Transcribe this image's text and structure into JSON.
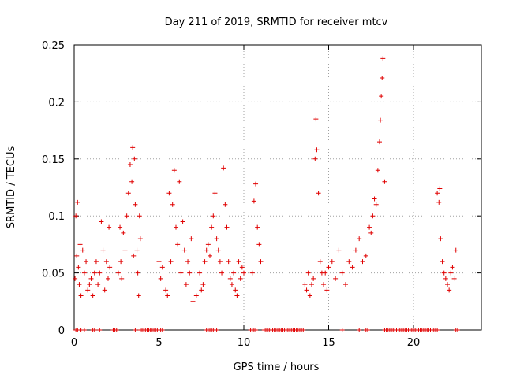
{
  "chart_data": {
    "type": "scatter",
    "title": "Day 211 of 2019, SRMTID for receiver mtcv",
    "xlabel": "GPS time / hours",
    "ylabel": "SRMTID / TECUs",
    "xlim": [
      0,
      24
    ],
    "ylim": [
      0,
      0.25
    ],
    "xticks": [
      0,
      5,
      10,
      15,
      20
    ],
    "xtick_labels": [
      "0",
      "5",
      "10",
      "15",
      "20"
    ],
    "yticks": [
      0,
      0.05,
      0.1,
      0.15,
      0.2,
      0.25
    ],
    "ytick_labels": [
      "0",
      "0.05",
      "0.1",
      "0.15",
      "0.2",
      "0.25"
    ],
    "grid": true,
    "marker": "+",
    "color": "#e00000",
    "series": [
      {
        "name": "SRMTID",
        "x": [
          0.05,
          0.1,
          0.15,
          0.2,
          0.25,
          0.3,
          0.35,
          0.4,
          0.5,
          0.6,
          0.7,
          0.8,
          0.9,
          1.0,
          1.1,
          1.2,
          1.3,
          1.4,
          1.5,
          1.6,
          1.7,
          1.8,
          1.9,
          2.0,
          2.05,
          2.1,
          2.6,
          2.7,
          2.75,
          2.8,
          2.9,
          3.0,
          3.1,
          3.2,
          3.3,
          3.4,
          3.45,
          3.5,
          3.55,
          3.6,
          3.7,
          3.75,
          3.8,
          3.85,
          3.9,
          5.0,
          5.1,
          5.2,
          5.4,
          5.5,
          5.6,
          5.7,
          5.8,
          5.9,
          6.0,
          6.1,
          6.2,
          6.3,
          6.4,
          6.5,
          6.6,
          6.7,
          6.8,
          6.9,
          7.0,
          7.2,
          7.4,
          7.5,
          7.6,
          7.7,
          7.8,
          7.9,
          8.0,
          8.1,
          8.2,
          8.3,
          8.4,
          8.5,
          8.6,
          8.7,
          8.8,
          8.9,
          9.0,
          9.1,
          9.2,
          9.3,
          9.4,
          9.5,
          9.6,
          9.7,
          9.8,
          9.9,
          10.0,
          10.5,
          10.6,
          10.7,
          10.8,
          10.9,
          11.0,
          13.6,
          13.7,
          13.8,
          13.9,
          14.0,
          14.1,
          14.2,
          14.25,
          14.3,
          14.4,
          14.5,
          14.6,
          14.7,
          14.8,
          14.9,
          15.0,
          15.2,
          15.4,
          15.6,
          15.8,
          16.0,
          16.2,
          16.4,
          16.6,
          16.8,
          17.0,
          17.2,
          17.4,
          17.5,
          17.6,
          17.7,
          17.8,
          17.9,
          18.0,
          18.05,
          18.1,
          18.15,
          18.2,
          18.3,
          21.4,
          21.5,
          21.55,
          21.6,
          21.7,
          21.8,
          21.9,
          22.0,
          22.1,
          22.2,
          22.3,
          22.4,
          22.5
        ],
        "y": [
          0.045,
          0.1,
          0.065,
          0.112,
          0.055,
          0.04,
          0.075,
          0.03,
          0.07,
          0.05,
          0.06,
          0.035,
          0.04,
          0.045,
          0.03,
          0.05,
          0.06,
          0.04,
          0.05,
          0.095,
          0.07,
          0.035,
          0.06,
          0.045,
          0.09,
          0.055,
          0.05,
          0.09,
          0.06,
          0.045,
          0.085,
          0.07,
          0.1,
          0.12,
          0.145,
          0.13,
          0.16,
          0.065,
          0.15,
          0.11,
          0.07,
          0.05,
          0.03,
          0.1,
          0.08,
          0.06,
          0.045,
          0.055,
          0.035,
          0.03,
          0.12,
          0.06,
          0.11,
          0.14,
          0.09,
          0.075,
          0.13,
          0.05,
          0.095,
          0.07,
          0.04,
          0.06,
          0.05,
          0.08,
          0.025,
          0.03,
          0.05,
          0.035,
          0.04,
          0.06,
          0.07,
          0.075,
          0.065,
          0.09,
          0.1,
          0.12,
          0.08,
          0.07,
          0.06,
          0.05,
          0.142,
          0.11,
          0.09,
          0.06,
          0.045,
          0.04,
          0.05,
          0.035,
          0.03,
          0.06,
          0.045,
          0.055,
          0.05,
          0.05,
          0.113,
          0.128,
          0.09,
          0.075,
          0.06,
          0.04,
          0.035,
          0.05,
          0.03,
          0.04,
          0.045,
          0.15,
          0.185,
          0.158,
          0.12,
          0.06,
          0.05,
          0.04,
          0.05,
          0.035,
          0.055,
          0.06,
          0.045,
          0.07,
          0.05,
          0.04,
          0.06,
          0.055,
          0.07,
          0.08,
          0.06,
          0.065,
          0.09,
          0.085,
          0.1,
          0.115,
          0.11,
          0.14,
          0.165,
          0.184,
          0.205,
          0.221,
          0.238,
          0.13,
          0.12,
          0.112,
          0.124,
          0.08,
          0.06,
          0.05,
          0.045,
          0.04,
          0.035,
          0.05,
          0.055,
          0.045,
          0.07
        ]
      }
    ],
    "zero_points_x": [
      0.1,
      0.2,
      0.4,
      0.6,
      1.1,
      1.2,
      1.5,
      2.3,
      2.4,
      2.5,
      3.6,
      3.9,
      4.0,
      4.1,
      4.2,
      4.3,
      4.4,
      4.5,
      4.6,
      4.7,
      4.8,
      4.9,
      5.0,
      5.1,
      5.2,
      7.8,
      7.9,
      8.0,
      8.1,
      8.2,
      8.3,
      8.4,
      10.4,
      10.5,
      10.6,
      10.7,
      11.2,
      11.3,
      11.4,
      11.5,
      11.6,
      11.7,
      11.8,
      11.9,
      12.0,
      12.1,
      12.2,
      12.3,
      12.4,
      12.5,
      12.6,
      12.7,
      12.8,
      12.9,
      13.0,
      13.1,
      13.2,
      13.3,
      13.4,
      13.5,
      15.8,
      16.8,
      17.2,
      17.3,
      18.3,
      18.4,
      18.5,
      18.6,
      18.7,
      18.8,
      18.9,
      19.0,
      19.1,
      19.2,
      19.3,
      19.4,
      19.5,
      19.6,
      19.7,
      19.8,
      19.9,
      20.0,
      20.1,
      20.2,
      20.3,
      20.4,
      20.5,
      20.6,
      20.7,
      20.8,
      20.9,
      21.0,
      21.1,
      21.2,
      21.3,
      21.4,
      22.5,
      22.6
    ]
  }
}
